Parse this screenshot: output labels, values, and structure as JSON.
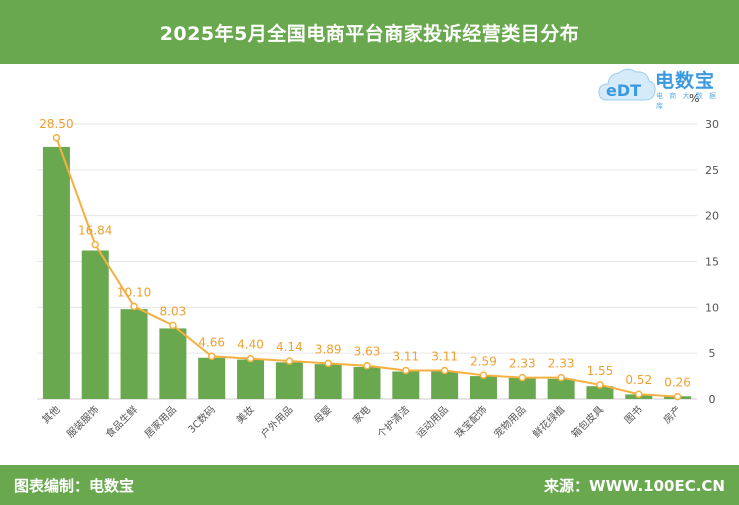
{
  "header": {
    "title": "2025年5月全国电商平台商家投诉经营类目分布"
  },
  "logo": {
    "text": "电数宝",
    "subtext": "电 商 大 数 据 库",
    "mark": "eDT"
  },
  "footer": {
    "left": "图表编制：电数宝",
    "right": "来源：WWW.100EC.CN"
  },
  "chart_data": {
    "type": "bar",
    "categories": [
      "其他",
      "服装服饰",
      "食品生鲜",
      "居家用品",
      "3C数码",
      "美妆",
      "户外用品",
      "母婴",
      "家电",
      "个护清洁",
      "运动用品",
      "珠宝配饰",
      "宠物用品",
      "鲜花绿植",
      "箱包皮具",
      "图书",
      "房产"
    ],
    "series": [
      {
        "type": "bar",
        "values": [
          27.5,
          16.2,
          9.8,
          7.7,
          4.5,
          4.3,
          4.0,
          3.8,
          3.5,
          3.0,
          3.0,
          2.5,
          2.3,
          2.2,
          1.4,
          0.5,
          0.3
        ]
      },
      {
        "type": "line",
        "values": [
          28.5,
          16.84,
          10.1,
          8.03,
          4.66,
          4.4,
          4.14,
          3.89,
          3.63,
          3.11,
          3.11,
          2.59,
          2.33,
          2.33,
          1.55,
          0.52,
          0.26
        ]
      }
    ],
    "data_labels": [
      "28.50",
      "16.84",
      "10.10",
      "8.03",
      "4.66",
      "4.40",
      "4.14",
      "3.89",
      "3.63",
      "3.11",
      "3.11",
      "2.59",
      "2.33",
      "2.33",
      "1.55",
      "0.52",
      "0.26"
    ],
    "y_axis": {
      "position": "right",
      "unit": "%",
      "range": [
        0,
        30
      ],
      "ticks": [
        "0",
        "5",
        "10",
        "15",
        "20",
        "25",
        "30"
      ]
    },
    "grid": true,
    "colors": {
      "bar": "#6aa84f",
      "line": "#f5b042",
      "label": "#f0a030",
      "grid": "#e6e6e6",
      "axis_text": "#555555",
      "header": "#6aa84f"
    }
  }
}
